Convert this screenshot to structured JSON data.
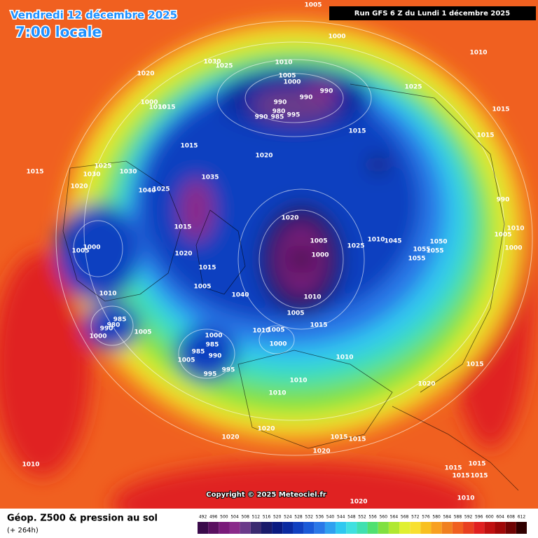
{
  "header": {
    "date": "Vendredi 12 décembre 2025",
    "time": "7:00 locale",
    "run": "Run GFS 6 Z du Lundi 1 décembre 2025"
  },
  "copyright": "Copyright © 2025 Meteociel.fr",
  "footer": {
    "title": "Géop. Z500 & pression au sol",
    "lead": "(+ 264h)"
  },
  "colorbar": {
    "levels": [
      492,
      496,
      500,
      504,
      508,
      512,
      516,
      520,
      524,
      528,
      532,
      536,
      540,
      544,
      548,
      552,
      556,
      560,
      564,
      568,
      572,
      576,
      580,
      584,
      588,
      592,
      596,
      600,
      604,
      608,
      612
    ],
    "colors": [
      "#3a0a4a",
      "#5a1060",
      "#7a1a7a",
      "#8a2a8a",
      "#6a3a8a",
      "#3a2a70",
      "#1a1a6a",
      "#0a1a80",
      "#0a2aa0",
      "#1040c0",
      "#1a5ad8",
      "#2a78e8",
      "#30a0f0",
      "#30c8f0",
      "#40e0e0",
      "#40e0b0",
      "#50e070",
      "#80e040",
      "#b0e830",
      "#e0f030",
      "#f8e030",
      "#f8c020",
      "#f8a020",
      "#f08020",
      "#f06020",
      "#e84020",
      "#e02020",
      "#c01010",
      "#a00808",
      "#700404",
      "#300000"
    ]
  },
  "isobar_labels": [
    1005,
    1010,
    1000,
    1030,
    1025,
    1010,
    1020,
    1005,
    1000,
    990,
    990,
    1025,
    1000,
    1010,
    1015,
    990,
    980,
    990,
    985,
    995,
    1015,
    1015,
    1015,
    1015,
    1020,
    1015,
    1025,
    1030,
    1030,
    1035,
    1020,
    1025,
    1040,
    990,
    1020,
    1015,
    1005,
    1025,
    1010,
    1045,
    1050,
    1055,
    1055,
    1055,
    1010,
    1005,
    1000,
    1000,
    1005,
    1020,
    1000,
    1015,
    1005,
    1010,
    1040,
    1010,
    1005,
    1015,
    985,
    980,
    990,
    1000,
    1005,
    1010,
    1005,
    1000,
    1000,
    985,
    985,
    990,
    1005,
    995,
    995,
    1010,
    1015,
    1010,
    1020,
    1010,
    1020,
    1020,
    1015,
    1015,
    1020,
    1010,
    1015,
    1015,
    1015,
    1015,
    1010,
    1020
  ]
}
